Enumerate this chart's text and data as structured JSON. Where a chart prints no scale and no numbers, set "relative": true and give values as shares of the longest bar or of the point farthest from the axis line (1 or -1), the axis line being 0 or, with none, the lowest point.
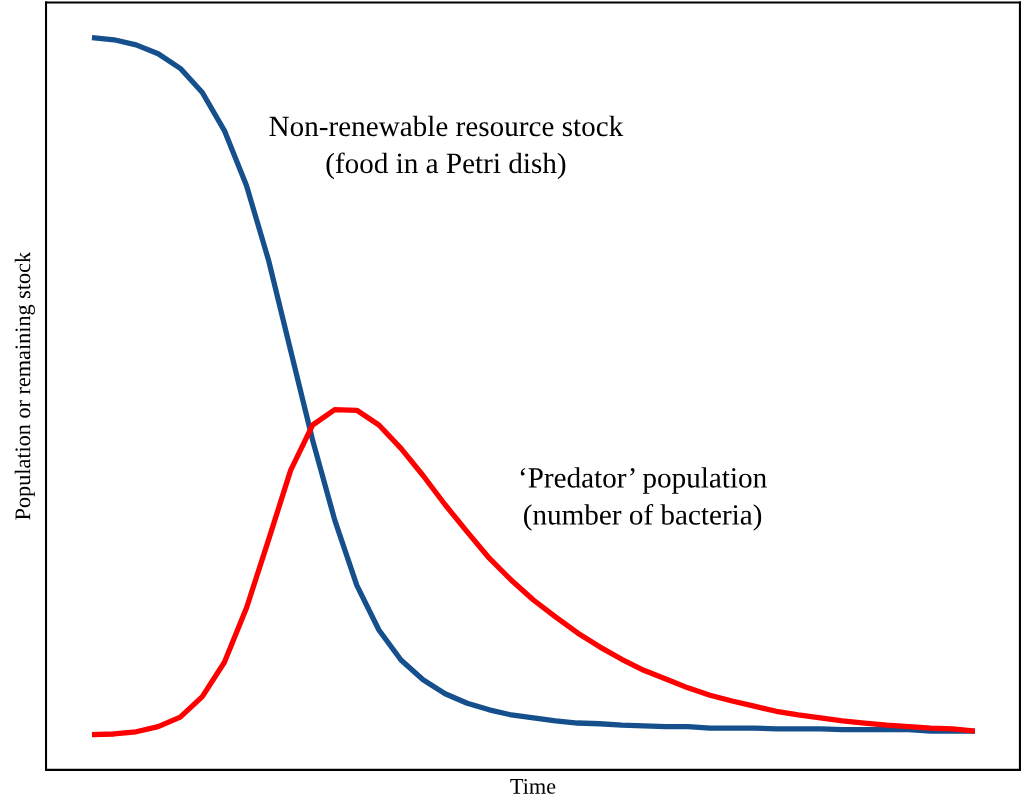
{
  "chart_data": {
    "type": "line",
    "relative": true,
    "xlabel": "Time",
    "ylabel": "Population or remaining stock",
    "categories": [
      null,
      null,
      null,
      null,
      null,
      null,
      null,
      null,
      null,
      null,
      null,
      null,
      null,
      null,
      null,
      null,
      null,
      null,
      null,
      null,
      null,
      null,
      null,
      null,
      null,
      null,
      null,
      null,
      null,
      null,
      null,
      null,
      null,
      null,
      null,
      null,
      null,
      null,
      null,
      null,
      null
    ],
    "series": [
      {
        "name": "Non-renewable resource stock\n(food in a Petri dish)",
        "color": "#154f8c",
        "values": [
          1.0,
          0.997,
          0.99,
          0.978,
          0.958,
          0.925,
          0.873,
          0.798,
          0.696,
          0.573,
          0.45,
          0.341,
          0.252,
          0.191,
          0.15,
          0.123,
          0.104,
          0.091,
          0.082,
          0.075,
          0.071,
          0.067,
          0.064,
          0.063,
          0.061,
          0.06,
          0.059,
          0.059,
          0.057,
          0.057,
          0.057,
          0.056,
          0.056,
          0.056,
          0.055,
          0.055,
          0.055,
          0.055,
          0.053,
          0.053,
          0.053
        ]
      },
      {
        "name": "‘Predator’ population\n(number of bacteria)",
        "color": "#ff0000",
        "values": [
          0.048,
          0.049,
          0.052,
          0.059,
          0.072,
          0.1,
          0.147,
          0.221,
          0.314,
          0.409,
          0.471,
          0.492,
          0.491,
          0.471,
          0.439,
          0.402,
          0.362,
          0.325,
          0.289,
          0.259,
          0.232,
          0.209,
          0.187,
          0.168,
          0.151,
          0.136,
          0.124,
          0.112,
          0.102,
          0.094,
          0.087,
          0.08,
          0.075,
          0.071,
          0.067,
          0.064,
          0.061,
          0.059,
          0.057,
          0.056,
          0.053
        ]
      }
    ],
    "marker": "none",
    "line_style": "solid"
  }
}
